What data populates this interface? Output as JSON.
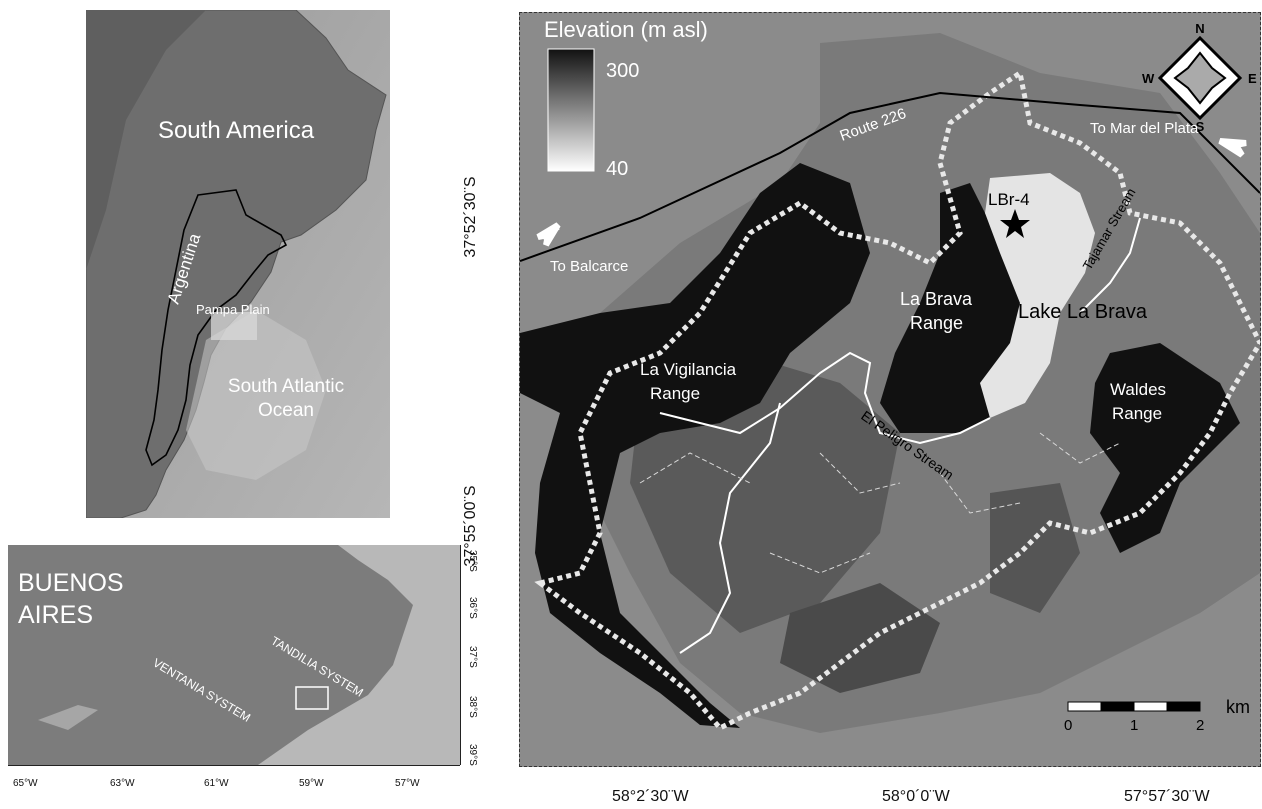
{
  "inset_south_america": {
    "continent_label": "South America",
    "country_label": "Argentina",
    "region_label": "Pampa Plain",
    "ocean_label_1": "South Atlantic",
    "ocean_label_2": "Ocean"
  },
  "inset_buenos_aires": {
    "province_label_1": "BUENOS",
    "province_label_2": "AIRES",
    "tandilia_label": "TANDILIA SYSTEM",
    "ventania_label": "VENTANIA SYSTEM",
    "lon_ticks": [
      "65°W",
      "63°W",
      "61°W",
      "59°W",
      "57°W"
    ],
    "lat_ticks": [
      "35°S",
      "36°S",
      "37°S",
      "38°S",
      "39°S"
    ]
  },
  "main_map": {
    "legend_title": "Elevation (m asl)",
    "legend_max": "300",
    "legend_min": "40",
    "north_label": "N",
    "south_label": "S",
    "east_label": "E",
    "west_label": "W",
    "route_label": "Route 226",
    "to_mar_del_plata": "To Mar del Plata",
    "to_balcarce": "To Balcarce",
    "site_label": "LBr-4",
    "lake_label": "Lake La Brava",
    "la_brava_range_1": "La Brava",
    "la_brava_range_2": "Range",
    "la_vigilancia_1": "La Vigilancia",
    "la_vigilancia_2": "Range",
    "waldes_1": "Waldes",
    "waldes_2": "Range",
    "tajamar_stream": "Tajamar Stream",
    "el_peligro_stream": "El Peligro Stream",
    "scale_ticks": [
      "0",
      "1",
      "2"
    ],
    "scale_unit": "km",
    "lat_labels": [
      "37°52´30¨S",
      "37°55´00¨S"
    ],
    "lon_labels": [
      "58°2´30¨W",
      "58°0´0¨W",
      "57°57´30¨W"
    ],
    "colors": {
      "high_elevation": "#111111",
      "low_elevation": "#ffffff",
      "lake": "#e4e4e4"
    }
  }
}
